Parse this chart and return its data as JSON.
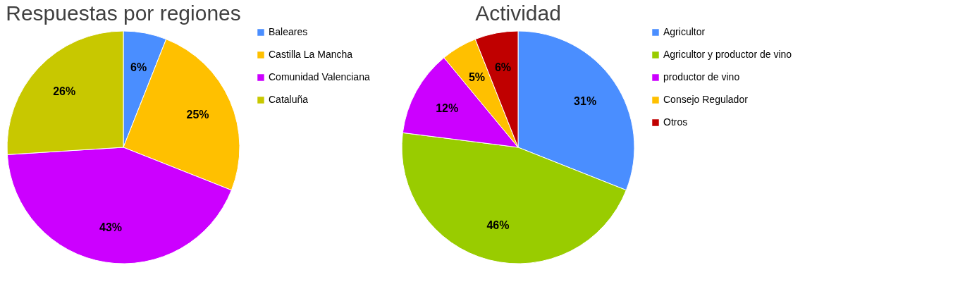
{
  "chart_data": [
    {
      "type": "pie",
      "title": "Respuestas por regiones",
      "categories": [
        "Baleares",
        "Castilla La Mancha",
        "Comunidad Valenciana",
        "Cataluña"
      ],
      "values": [
        6,
        25,
        43,
        26
      ],
      "colors": [
        "#4a8eff",
        "#ffc000",
        "#cc00ff",
        "#c8c800"
      ],
      "value_labels": [
        "6%",
        "25%",
        "43%",
        "26%"
      ],
      "legend": "right"
    },
    {
      "type": "pie",
      "title": "Actividad",
      "categories": [
        "Agricultor",
        "Agricultor y productor de vino",
        "productor de vino",
        "Consejo Regulador",
        "Otros"
      ],
      "values": [
        31,
        46,
        12,
        5,
        6
      ],
      "colors": [
        "#4a8eff",
        "#99cc00",
        "#cc00ff",
        "#ffc000",
        "#c00000"
      ],
      "value_labels": [
        "31%",
        "46%",
        "12%",
        "5%",
        "6%"
      ],
      "legend": "right"
    }
  ]
}
